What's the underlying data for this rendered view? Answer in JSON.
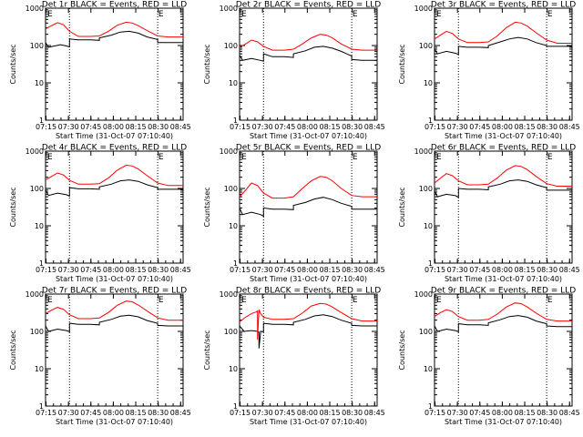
{
  "figure": {
    "x_axis_title": "Start Time (31-Oct-07 07:10:40)",
    "y_axis_title": "Counts/sec",
    "corner_label": "E",
    "x_tick_labels": [
      "07:15",
      "07:30",
      "07:45",
      "08:00",
      "08:15",
      "08:30",
      "08:45"
    ],
    "y_tick_labels": [
      "1",
      "10",
      "100",
      "1000"
    ]
  },
  "colors": {
    "events": "#000000",
    "lld": "#ff0000",
    "axis": "#000000"
  },
  "chart_data": [
    {
      "type": "line",
      "title": "Det 1r BLACK = Events, RED = LLD",
      "xlabel": "Start Time (31-Oct-07 07:10:40)",
      "ylabel": "Counts/sec",
      "xlim_min": [
        4,
        96
      ],
      "ylim": [
        1,
        1000
      ],
      "yscale": "log",
      "dotted_lines_min": [
        20,
        79
      ],
      "series": [
        {
          "name": "Events",
          "color": "#000000",
          "x": [
            4,
            6,
            10,
            14,
            18,
            20,
            20,
            26,
            34,
            40,
            40,
            48,
            54,
            60,
            66,
            72,
            79,
            79,
            86,
            96
          ],
          "values": [
            120,
            90,
            97,
            105,
            97,
            92,
            150,
            142,
            142,
            138,
            160,
            190,
            230,
            240,
            215,
            170,
            145,
            120,
            120,
            120
          ]
        },
        {
          "name": "LLD",
          "color": "#ff0000",
          "x": [
            4,
            8,
            12,
            16,
            20,
            26,
            34,
            40,
            46,
            52,
            58,
            62,
            66,
            72,
            79,
            86,
            96
          ],
          "values": [
            280,
            340,
            410,
            360,
            240,
            175,
            175,
            180,
            240,
            350,
            420,
            400,
            340,
            250,
            180,
            170,
            170
          ]
        }
      ]
    },
    {
      "type": "line",
      "title": "Det 2r BLACK = Events, RED = LLD",
      "xlabel": "Start Time (31-Oct-07 07:10:40)",
      "ylabel": "Counts/sec",
      "xlim_min": [
        4,
        96
      ],
      "ylim": [
        1,
        1000
      ],
      "yscale": "log",
      "dotted_lines_min": [
        20,
        79
      ],
      "series": [
        {
          "name": "Events",
          "color": "#000000",
          "x": [
            4,
            6,
            12,
            18,
            20,
            20,
            26,
            34,
            40,
            40,
            48,
            54,
            60,
            66,
            72,
            79,
            79,
            86,
            96
          ],
          "values": [
            55,
            40,
            45,
            40,
            38,
            60,
            50,
            50,
            48,
            60,
            72,
            90,
            95,
            85,
            70,
            52,
            42,
            40,
            40
          ]
        },
        {
          "name": "LLD",
          "color": "#ff0000",
          "x": [
            4,
            8,
            12,
            16,
            20,
            26,
            34,
            40,
            46,
            52,
            58,
            62,
            66,
            72,
            79,
            86,
            96
          ],
          "values": [
            90,
            110,
            140,
            125,
            95,
            75,
            75,
            80,
            110,
            160,
            200,
            190,
            160,
            110,
            80,
            75,
            75
          ]
        }
      ]
    },
    {
      "type": "line",
      "title": "Det 3r BLACK = Events, RED = LLD",
      "xlabel": "Start Time (31-Oct-07 07:10:40)",
      "ylabel": "Counts/sec",
      "xlim_min": [
        4,
        96
      ],
      "ylim": [
        1,
        1000
      ],
      "yscale": "log",
      "dotted_lines_min": [
        20,
        79
      ],
      "series": [
        {
          "name": "Events",
          "color": "#000000",
          "x": [
            4,
            6,
            12,
            18,
            20,
            20,
            26,
            34,
            40,
            40,
            48,
            54,
            60,
            66,
            72,
            79,
            79,
            86,
            96
          ],
          "values": [
            80,
            60,
            70,
            62,
            58,
            95,
            90,
            90,
            88,
            100,
            125,
            150,
            165,
            150,
            120,
            100,
            95,
            95,
            95
          ]
        },
        {
          "name": "LLD",
          "color": "#ff0000",
          "x": [
            4,
            8,
            12,
            16,
            20,
            26,
            34,
            40,
            46,
            52,
            58,
            62,
            66,
            72,
            79,
            86,
            96
          ],
          "values": [
            150,
            190,
            240,
            210,
            150,
            120,
            120,
            125,
            180,
            300,
            420,
            400,
            330,
            220,
            140,
            115,
            115
          ]
        }
      ]
    },
    {
      "type": "line",
      "title": "Det 4r BLACK = Events, RED = LLD",
      "xlabel": "Start Time (31-Oct-07 07:10:40)",
      "ylabel": "Counts/sec",
      "xlim_min": [
        4,
        96
      ],
      "ylim": [
        1,
        1000
      ],
      "yscale": "log",
      "dotted_lines_min": [
        20,
        79
      ],
      "series": [
        {
          "name": "Events",
          "color": "#000000",
          "x": [
            4,
            6,
            12,
            18,
            20,
            20,
            26,
            34,
            40,
            40,
            48,
            54,
            60,
            66,
            72,
            79,
            79,
            86,
            96
          ],
          "values": [
            90,
            65,
            75,
            68,
            62,
            105,
            98,
            98,
            95,
            110,
            130,
            160,
            170,
            155,
            125,
            105,
            95,
            95,
            95
          ]
        },
        {
          "name": "LLD",
          "color": "#ff0000",
          "x": [
            4,
            8,
            12,
            16,
            20,
            26,
            34,
            40,
            46,
            52,
            58,
            62,
            66,
            72,
            79,
            86,
            96
          ],
          "values": [
            170,
            210,
            260,
            230,
            165,
            130,
            130,
            135,
            190,
            310,
            420,
            400,
            330,
            220,
            140,
            120,
            120
          ]
        }
      ]
    },
    {
      "type": "line",
      "title": "Det 5r BLACK = Events, RED = LLD",
      "xlabel": "Start Time (31-Oct-07 07:10:40)",
      "ylabel": "Counts/sec",
      "xlim_min": [
        4,
        96
      ],
      "ylim": [
        1,
        1000
      ],
      "yscale": "log",
      "dotted_lines_min": [
        20,
        79
      ],
      "series": [
        {
          "name": "Events",
          "color": "#000000",
          "x": [
            4,
            6,
            12,
            18,
            20,
            20,
            26,
            34,
            40,
            40,
            48,
            54,
            60,
            66,
            72,
            79,
            79,
            86,
            96
          ],
          "values": [
            30,
            20,
            23,
            20,
            18,
            30,
            28,
            28,
            27,
            35,
            42,
            52,
            58,
            50,
            40,
            33,
            28,
            28,
            28
          ]
        },
        {
          "name": "LLD",
          "color": "#ff0000",
          "x": [
            4,
            8,
            12,
            16,
            20,
            26,
            34,
            40,
            46,
            52,
            58,
            62,
            66,
            72,
            79,
            86,
            96
          ],
          "values": [
            60,
            90,
            140,
            120,
            75,
            55,
            55,
            60,
            100,
            160,
            210,
            200,
            160,
            100,
            65,
            60,
            60
          ]
        }
      ]
    },
    {
      "type": "line",
      "title": "Det 6r BLACK = Events, RED = LLD",
      "xlabel": "Start Time (31-Oct-07 07:10:40)",
      "ylabel": "Counts/sec",
      "xlim_min": [
        4,
        96
      ],
      "ylim": [
        1,
        1000
      ],
      "yscale": "log",
      "dotted_lines_min": [
        20,
        79
      ],
      "series": [
        {
          "name": "Events",
          "color": "#000000",
          "x": [
            4,
            6,
            12,
            18,
            20,
            20,
            26,
            34,
            40,
            40,
            48,
            54,
            60,
            66,
            72,
            79,
            79,
            86,
            96
          ],
          "values": [
            85,
            60,
            70,
            64,
            58,
            100,
            95,
            95,
            92,
            110,
            130,
            160,
            170,
            155,
            125,
            105,
            90,
            90,
            90
          ]
        },
        {
          "name": "LLD",
          "color": "#ff0000",
          "x": [
            4,
            8,
            12,
            16,
            20,
            26,
            34,
            40,
            46,
            52,
            58,
            62,
            66,
            72,
            79,
            86,
            96
          ],
          "values": [
            140,
            190,
            250,
            220,
            160,
            125,
            125,
            130,
            190,
            310,
            410,
            390,
            320,
            210,
            135,
            115,
            115
          ]
        }
      ]
    },
    {
      "type": "line",
      "title": "Det 7r BLACK = Events, RED = LLD",
      "xlabel": "Start Time (31-Oct-07 07:10:40)",
      "ylabel": "Counts/sec",
      "xlim_min": [
        4,
        96
      ],
      "ylim": [
        1,
        1000
      ],
      "yscale": "log",
      "dotted_lines_min": [
        20,
        79
      ],
      "series": [
        {
          "name": "Events",
          "color": "#000000",
          "x": [
            4,
            6,
            12,
            18,
            20,
            20,
            26,
            34,
            40,
            40,
            48,
            54,
            60,
            66,
            72,
            79,
            79,
            86,
            96
          ],
          "values": [
            140,
            100,
            115,
            105,
            98,
            165,
            155,
            155,
            150,
            175,
            210,
            255,
            270,
            245,
            195,
            165,
            145,
            140,
            140
          ]
        },
        {
          "name": "LLD",
          "color": "#ff0000",
          "x": [
            4,
            8,
            12,
            16,
            20,
            26,
            34,
            40,
            46,
            52,
            58,
            62,
            66,
            72,
            79,
            86,
            96
          ],
          "values": [
            300,
            370,
            440,
            390,
            280,
            220,
            220,
            230,
            320,
            500,
            650,
            620,
            510,
            350,
            230,
            200,
            200
          ]
        }
      ]
    },
    {
      "type": "line",
      "title": "Det 8r BLACK = Events, RED = LLD",
      "xlabel": "Start Time (31-Oct-07 07:10:40)",
      "ylabel": "Counts/sec",
      "xlim_min": [
        4,
        96
      ],
      "ylim": [
        1,
        1000
      ],
      "yscale": "log",
      "dotted_lines_min": [
        20,
        79
      ],
      "series": [
        {
          "name": "Events",
          "color": "#000000",
          "x": [
            4,
            7,
            12,
            16,
            17,
            17,
            18,
            18,
            20,
            20,
            26,
            34,
            40,
            40,
            48,
            54,
            60,
            66,
            72,
            79,
            79,
            86,
            96
          ],
          "values": [
            140,
            100,
            105,
            100,
            95,
            35,
            90,
            100,
            98,
            165,
            155,
            155,
            150,
            175,
            210,
            260,
            280,
            250,
            200,
            165,
            145,
            140,
            140
          ]
        },
        {
          "name": "LLD",
          "color": "#ff0000",
          "x": [
            4,
            8,
            12,
            15,
            16,
            16,
            17,
            18,
            20,
            26,
            34,
            40,
            46,
            52,
            58,
            62,
            66,
            72,
            79,
            86,
            96
          ],
          "values": [
            180,
            240,
            300,
            330,
            350,
            60,
            380,
            300,
            240,
            210,
            210,
            220,
            310,
            480,
            560,
            540,
            450,
            320,
            220,
            190,
            190
          ]
        }
      ]
    },
    {
      "type": "line",
      "title": "Det 9r BLACK = Events, RED = LLD",
      "xlabel": "Start Time (31-Oct-07 07:10:40)",
      "ylabel": "Counts/sec",
      "xlim_min": [
        4,
        96
      ],
      "ylim": [
        1,
        1000
      ],
      "yscale": "log",
      "dotted_lines_min": [
        20,
        79
      ],
      "series": [
        {
          "name": "Events",
          "color": "#000000",
          "x": [
            4,
            6,
            12,
            18,
            20,
            20,
            26,
            34,
            40,
            40,
            48,
            54,
            60,
            66,
            72,
            79,
            79,
            86,
            96
          ],
          "values": [
            140,
            100,
            115,
            105,
            98,
            160,
            150,
            150,
            145,
            170,
            205,
            250,
            265,
            240,
            190,
            160,
            140,
            135,
            135
          ]
        },
        {
          "name": "LLD",
          "color": "#ff0000",
          "x": [
            4,
            8,
            12,
            16,
            20,
            26,
            34,
            40,
            46,
            52,
            58,
            62,
            66,
            72,
            79,
            86,
            96
          ],
          "values": [
            250,
            320,
            380,
            340,
            250,
            200,
            200,
            210,
            290,
            450,
            580,
            550,
            450,
            310,
            210,
            190,
            190
          ]
        }
      ]
    }
  ]
}
